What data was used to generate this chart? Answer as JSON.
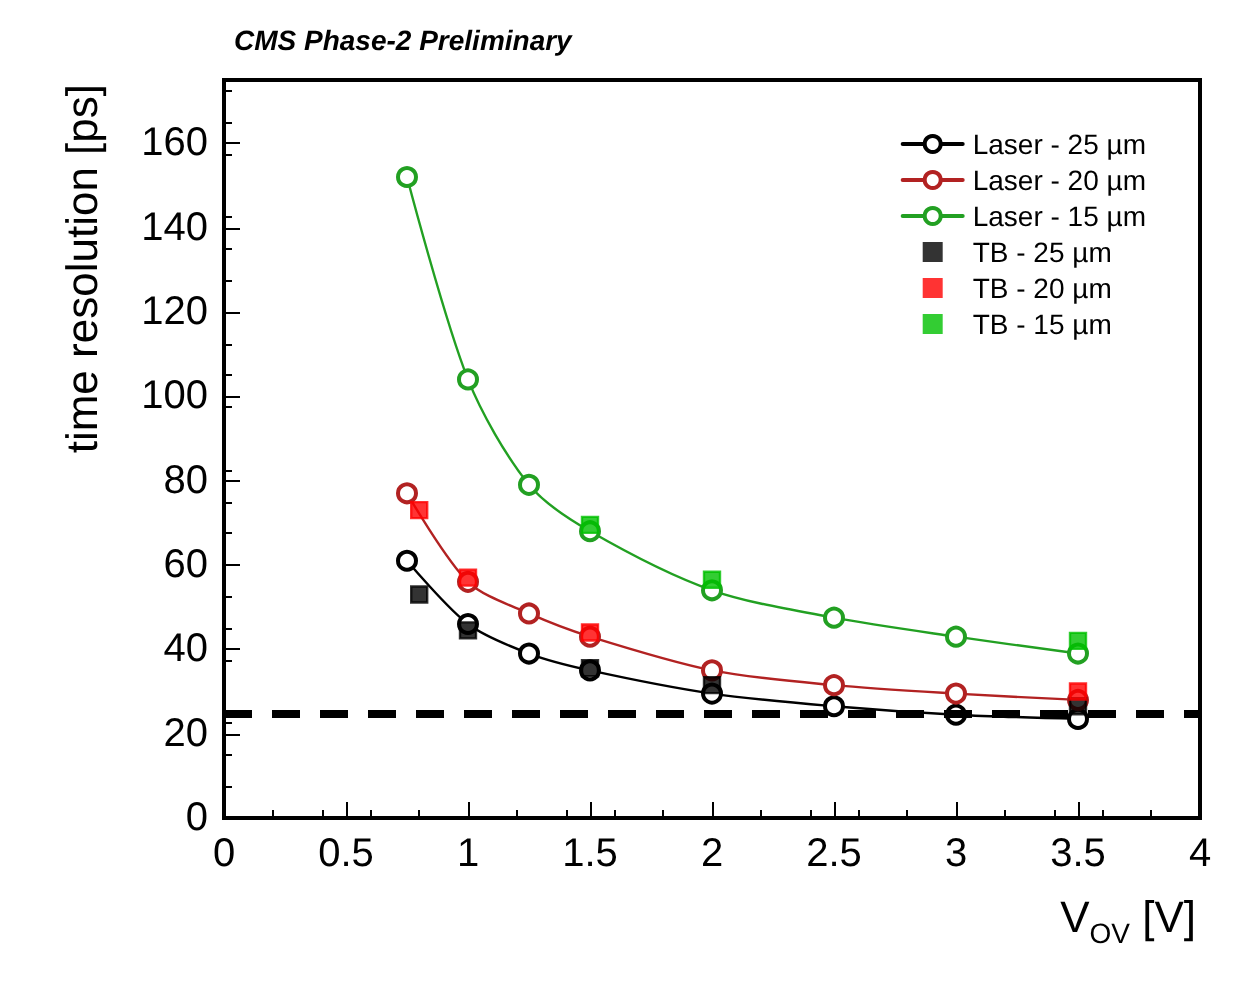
{
  "chart_data": {
    "type": "line",
    "title": "CMS Phase-2 Preliminary",
    "xlabel": "V$_{OV}$ [V]",
    "ylabel": "time resolution [ps]",
    "xlim": [
      0,
      4
    ],
    "xticks": [
      0,
      0.5,
      1,
      1.5,
      2,
      2.5,
      3,
      3.5,
      4
    ],
    "ylim": [
      0,
      175
    ],
    "yticks": [
      0,
      20,
      40,
      60,
      80,
      100,
      120,
      140,
      160
    ],
    "grid": false,
    "legend": "top right",
    "series": [
      {
        "name": "Laser - 25 µm",
        "marker": "circle",
        "color": "#000000",
        "x": [
          0.75,
          1,
          1.25,
          1.5,
          2,
          2.5,
          3,
          3.5
        ],
        "values": [
          61,
          46,
          39,
          35,
          29.5,
          26.5,
          24.5,
          23.5
        ]
      },
      {
        "name": "Laser - 20 µm",
        "marker": "circle",
        "color": "#b22222",
        "x": [
          0.75,
          1,
          1.25,
          1.5,
          2,
          2.5,
          3,
          3.5
        ],
        "values": [
          77,
          56,
          48.5,
          43,
          35,
          31.5,
          29.5,
          28
        ]
      },
      {
        "name": "Laser - 15 µm",
        "marker": "circle",
        "color": "#22a022",
        "x": [
          0.75,
          1,
          1.25,
          1.5,
          2,
          2.5,
          3,
          3.5
        ],
        "values": [
          152,
          104,
          79,
          68,
          54,
          47.5,
          43,
          39
        ]
      },
      {
        "name": "TB - 25 µm",
        "type": "scatter",
        "marker": "square",
        "color": "#000000",
        "x": [
          0.8,
          1,
          1.5,
          2,
          3.5
        ],
        "values": [
          53,
          44.5,
          35.5,
          31.5,
          26.5
        ]
      },
      {
        "name": "TB - 20 µm",
        "type": "scatter",
        "marker": "square",
        "color": "#ff0000",
        "x": [
          0.8,
          1,
          1.5,
          3.5
        ],
        "values": [
          73,
          57,
          44,
          30
        ]
      },
      {
        "name": "TB - 15 µm",
        "type": "scatter",
        "marker": "square",
        "color": "#00c000",
        "x": [
          1.5,
          2,
          3.5
        ],
        "values": [
          69.5,
          56.5,
          42
        ]
      }
    ],
    "ref_lines": [
      {
        "axis": "y",
        "value": 25,
        "color": "#000000",
        "line_style": "dashed"
      }
    ]
  }
}
